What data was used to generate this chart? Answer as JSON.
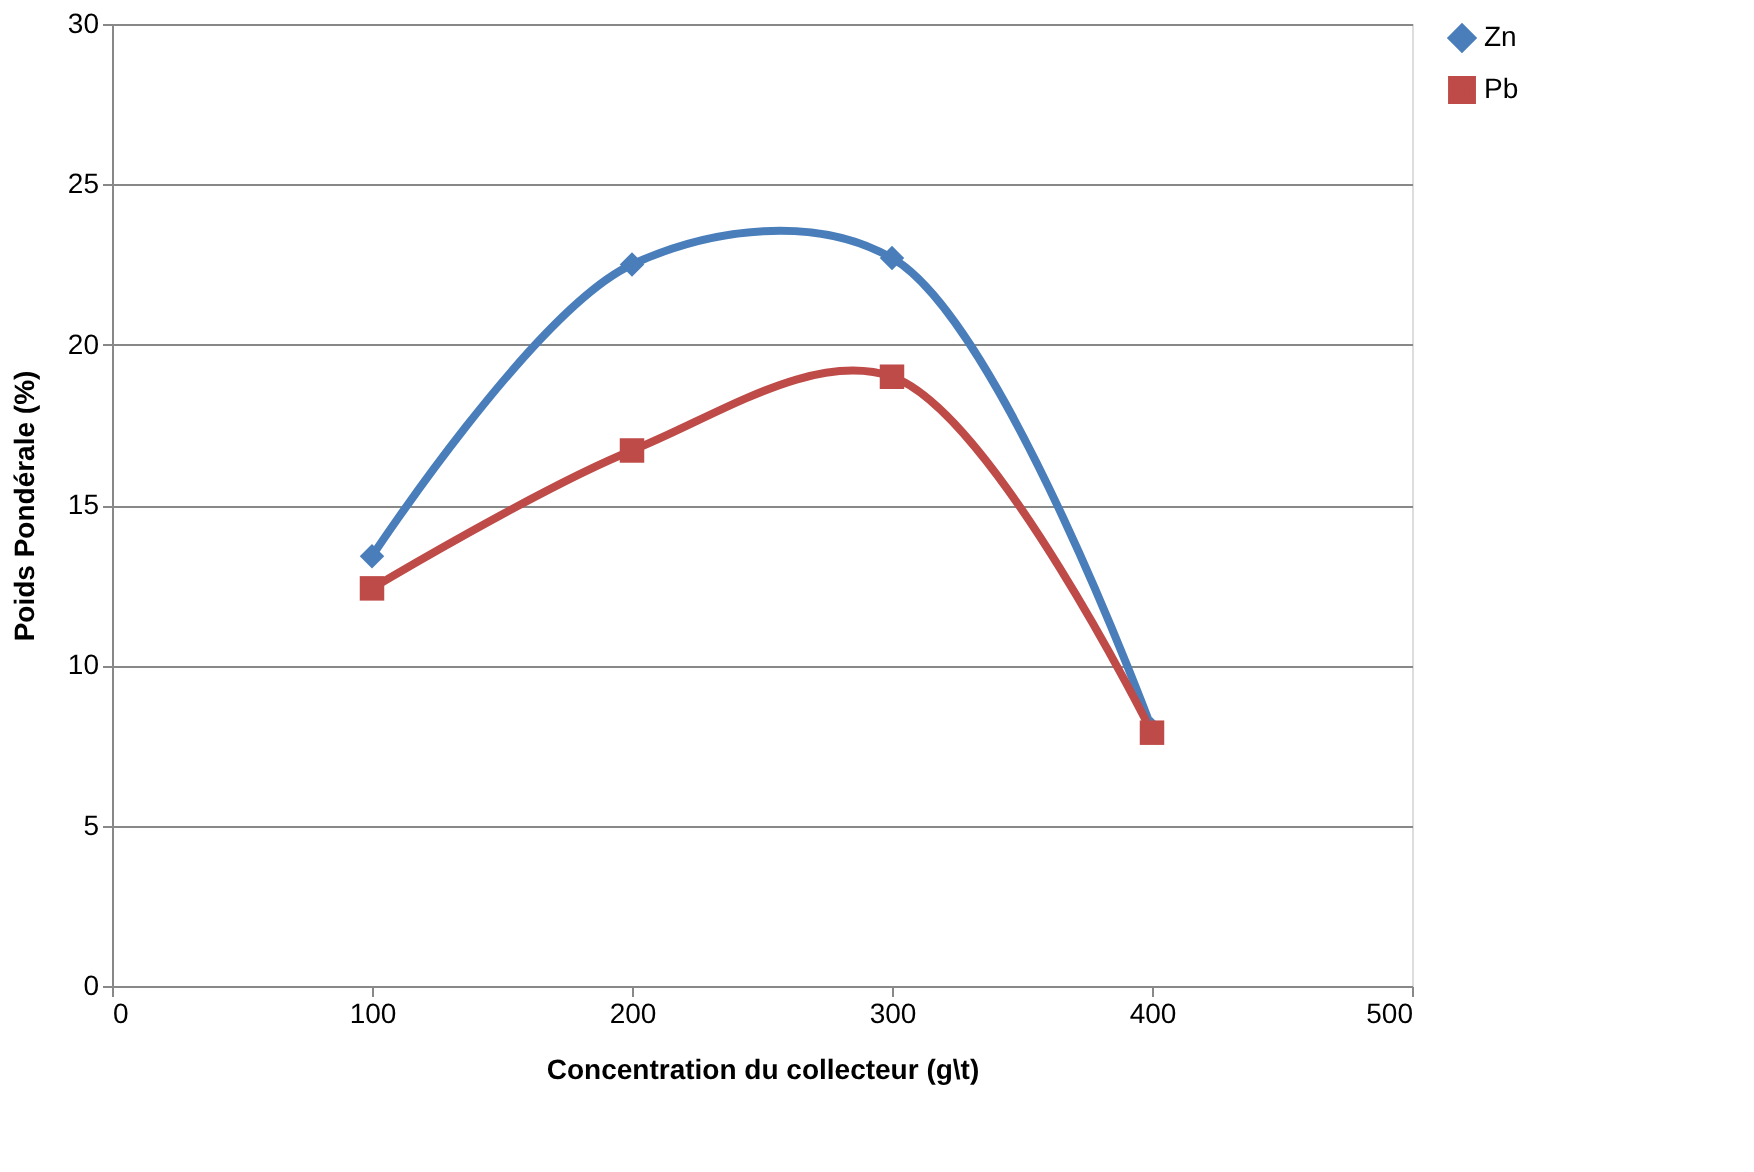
{
  "chart_data": {
    "type": "line",
    "xlabel": "Concentration du collecteur (g\\t)",
    "ylabel": "Poids Pondérale (%)",
    "x": [
      100,
      200,
      300,
      400
    ],
    "series": [
      {
        "name": "Zn",
        "color": "#4a7ebb",
        "values": [
          13.4,
          22.5,
          22.7,
          8.0
        ],
        "marker": "diamond"
      },
      {
        "name": "Pb",
        "color": "#be4b48",
        "values": [
          12.4,
          16.7,
          19.0,
          7.9
        ],
        "marker": "square"
      }
    ],
    "xlim": [
      0,
      500
    ],
    "xticks": [
      0,
      100,
      200,
      300,
      400,
      500
    ],
    "ylim": [
      0,
      30
    ],
    "yticks": [
      0,
      5,
      10,
      15,
      20,
      25,
      30
    ],
    "grid": "y",
    "legend": "right",
    "line_style": "solid"
  }
}
